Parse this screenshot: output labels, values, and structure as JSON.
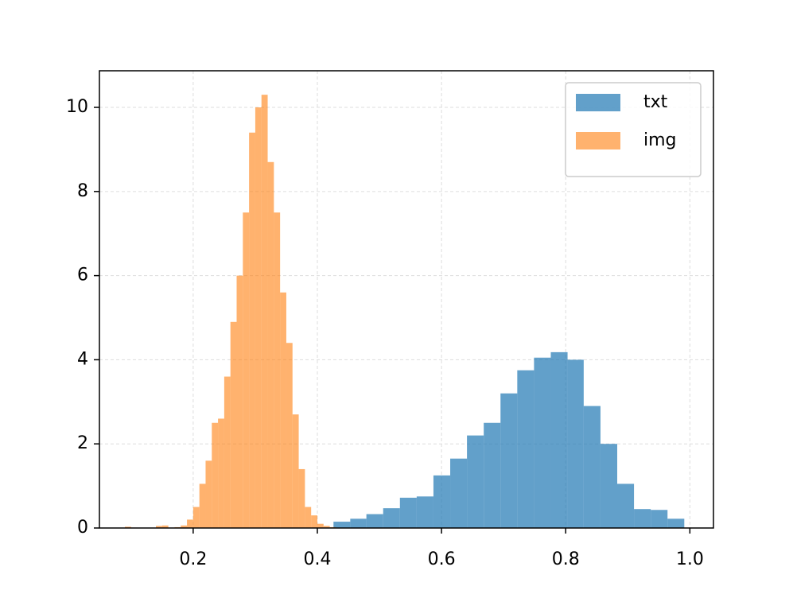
{
  "chart_data": {
    "type": "histogram",
    "series": [
      {
        "name": "txt",
        "color": "#1f77b4",
        "alpha": 0.7,
        "bins": [
          0.426,
          0.453,
          0.479,
          0.506,
          0.533,
          0.56,
          0.587,
          0.614,
          0.641,
          0.668,
          0.695,
          0.722,
          0.749,
          0.776,
          0.803,
          0.829,
          0.856,
          0.883,
          0.91,
          0.937,
          0.964,
          0.991
        ],
        "values": [
          0.15,
          0.22,
          0.33,
          0.47,
          0.72,
          0.75,
          1.25,
          1.65,
          2.2,
          2.5,
          3.2,
          3.75,
          4.05,
          4.18,
          4.0,
          2.9,
          2.0,
          1.05,
          0.45,
          0.43,
          0.22
        ]
      },
      {
        "name": "img",
        "color": "#ff7f0e",
        "alpha": 0.6,
        "bins": [
          0.09,
          0.1,
          0.11,
          0.12,
          0.13,
          0.14,
          0.15,
          0.16,
          0.17,
          0.18,
          0.19,
          0.2,
          0.21,
          0.22,
          0.23,
          0.24,
          0.25,
          0.26,
          0.27,
          0.28,
          0.29,
          0.3,
          0.31,
          0.32,
          0.33,
          0.34,
          0.35,
          0.36,
          0.37,
          0.38,
          0.39,
          0.4,
          0.41,
          0.42,
          0.43
        ],
        "values": [
          0.03,
          0.01,
          0,
          0,
          0,
          0.05,
          0.06,
          0.01,
          0.02,
          0.06,
          0.2,
          0.5,
          1.05,
          1.6,
          2.5,
          2.6,
          3.6,
          4.9,
          6.0,
          7.5,
          9.4,
          10.0,
          10.3,
          8.7,
          7.5,
          5.6,
          4.4,
          2.7,
          1.4,
          0.5,
          0.3,
          0.1,
          0.05,
          0.02
        ]
      }
    ],
    "xlim": [
      0.049,
      1.038
    ],
    "ylim": [
      0,
      10.87
    ],
    "xticks": [
      0.2,
      0.4,
      0.6,
      0.8,
      {
        "value": 1.0,
        "label": "1.0"
      }
    ],
    "yticks": [
      0,
      2,
      4,
      6,
      8,
      10
    ],
    "grid": true,
    "legend": "upper right"
  }
}
